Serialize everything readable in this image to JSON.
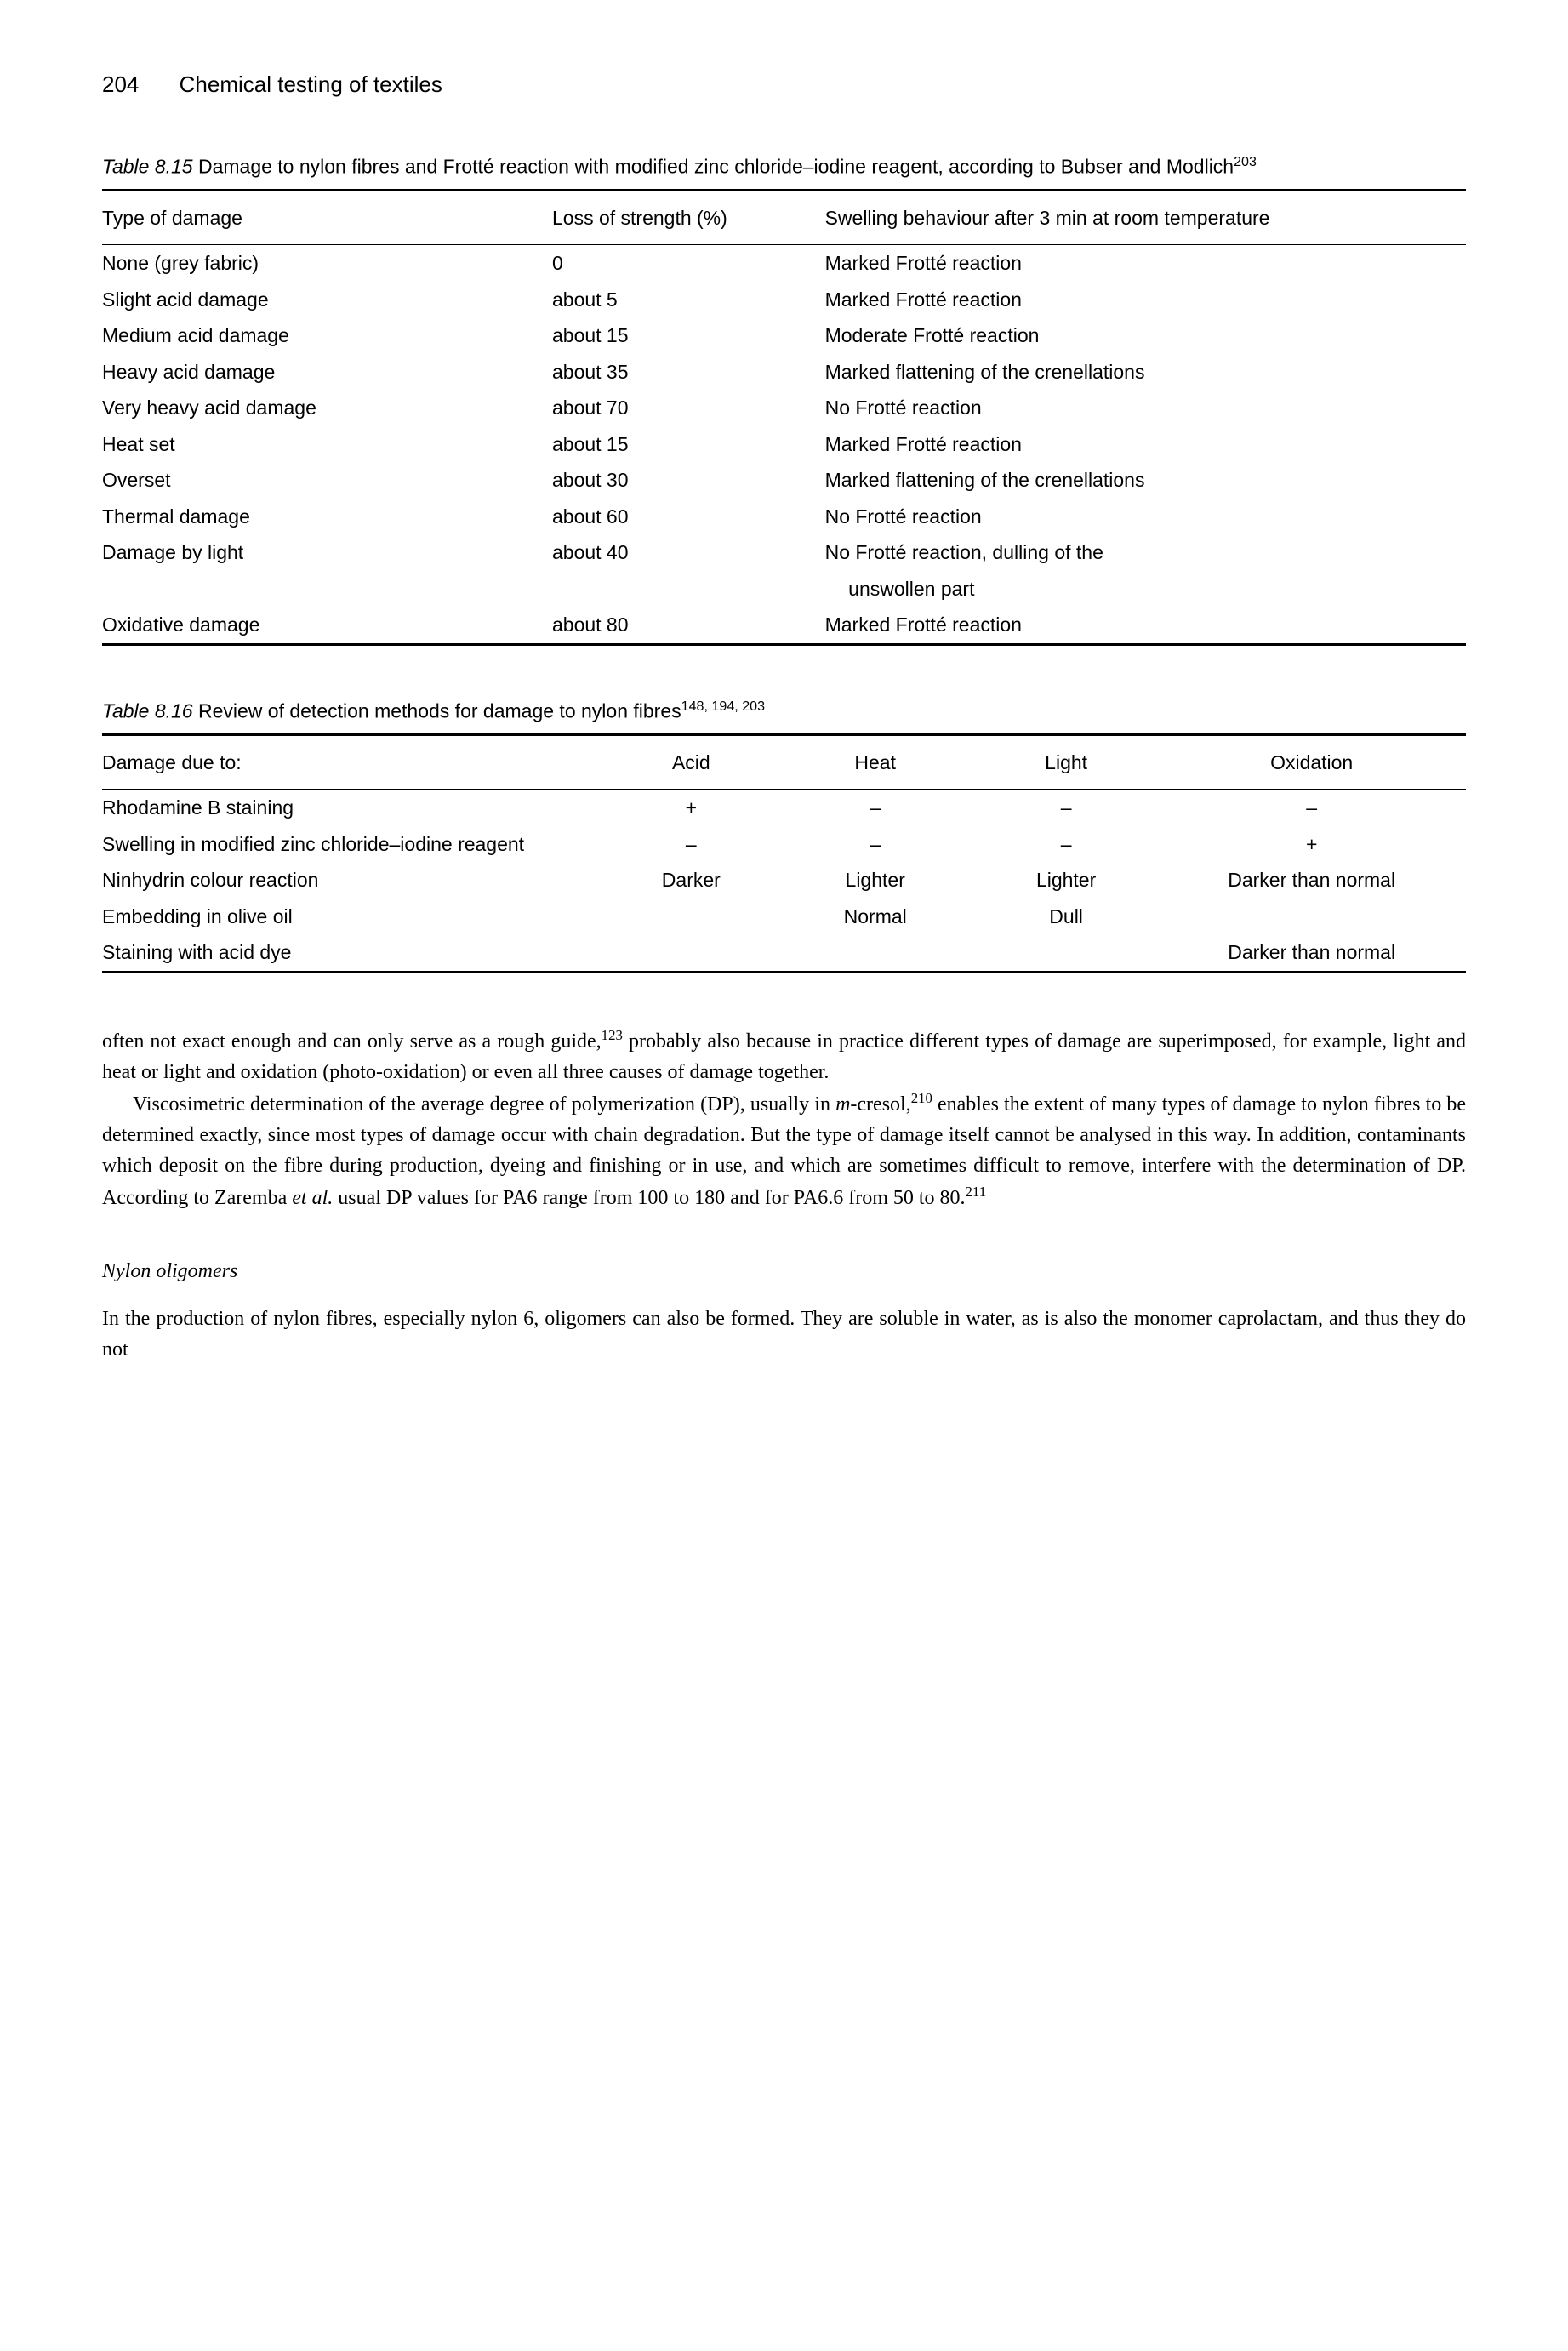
{
  "header": {
    "page_number": "204",
    "running_title": "Chemical testing of textiles"
  },
  "table815": {
    "caption_label": "Table 8.15",
    "caption_text": " Damage to nylon fibres and Frotté reaction with modified zinc chloride–iodine reagent, according to Bubser and Modlich",
    "caption_sup": "203",
    "columns": [
      "Type of damage",
      "Loss of strength (%)",
      "Swelling behaviour after 3 min at room temperature"
    ],
    "rows": [
      [
        "None (grey fabric)",
        "0",
        "Marked Frotté reaction"
      ],
      [
        "Slight acid damage",
        "about 5",
        "Marked Frotté reaction"
      ],
      [
        "Medium acid damage",
        "about 15",
        "Moderate Frotté reaction"
      ],
      [
        "Heavy acid damage",
        "about 35",
        "Marked flattening of the crenellations"
      ],
      [
        "Very heavy acid damage",
        "about 70",
        "No Frotté reaction"
      ],
      [
        "Heat set",
        "about 15",
        "Marked Frotté reaction"
      ],
      [
        "Overset",
        "about 30",
        "Marked flattening of the crenellations"
      ],
      [
        "Thermal damage",
        "about 60",
        "No Frotté reaction"
      ],
      [
        "Damage by light",
        "about 40",
        "No Frotté reaction, dulling of the"
      ],
      [
        "",
        "",
        "  unswollen part"
      ],
      [
        "Oxidative damage",
        "about 80",
        "Marked Frotté reaction"
      ]
    ]
  },
  "table816": {
    "caption_label": "Table 8.16",
    "caption_text": " Review of detection methods for damage to nylon fibres",
    "caption_sup": "148, 194, 203",
    "columns": [
      "Damage due to:",
      "Acid",
      "Heat",
      "Light",
      "Oxidation"
    ],
    "rows": [
      [
        "Rhodamine B staining",
        "+",
        "–",
        "–",
        "–"
      ],
      [
        "Swelling in modified zinc chloride–iodine reagent",
        "–",
        "–",
        "–",
        "+"
      ],
      [
        "Ninhydrin colour reaction",
        "Darker",
        "Lighter",
        "Lighter",
        "Darker than normal"
      ],
      [
        "Embedding in olive oil",
        "",
        "Normal",
        "Dull",
        ""
      ],
      [
        "Staining with acid dye",
        "",
        "",
        "",
        "Darker than normal"
      ]
    ]
  },
  "body": {
    "p1a": "often not exact enough and can only serve as a rough guide,",
    "p1sup": "123",
    "p1b": " probably also because in practice different types of damage are superimposed, for example, light and heat or light and oxidation (photo-oxidation) or even all three causes of damage together.",
    "p2a": "Viscosimetric determination of the average degree of polymerization (DP), usually in ",
    "p2it": "m",
    "p2b": "-cresol,",
    "p2sup1": "210",
    "p2c": " enables the extent of many types of damage to nylon fibres to be determined exactly, since most types of damage occur with chain degradation. But the type of damage itself cannot be analysed in this way. In addition, contaminants which deposit on the fibre during production, dyeing and finishing or in use, and which are sometimes difficult to remove, interfere with the determination of DP. According to Zaremba ",
    "p2it2": "et al.",
    "p2d": " usual DP values for PA6 range from 100 to 180 and for PA6.6 from 50 to 80.",
    "p2sup2": "211",
    "heading": "Nylon oligomers",
    "p3": "In the production of nylon fibres, especially nylon 6, oligomers can also be formed. They are soluble in water, as is also the monomer caprolactam, and thus they do not"
  }
}
